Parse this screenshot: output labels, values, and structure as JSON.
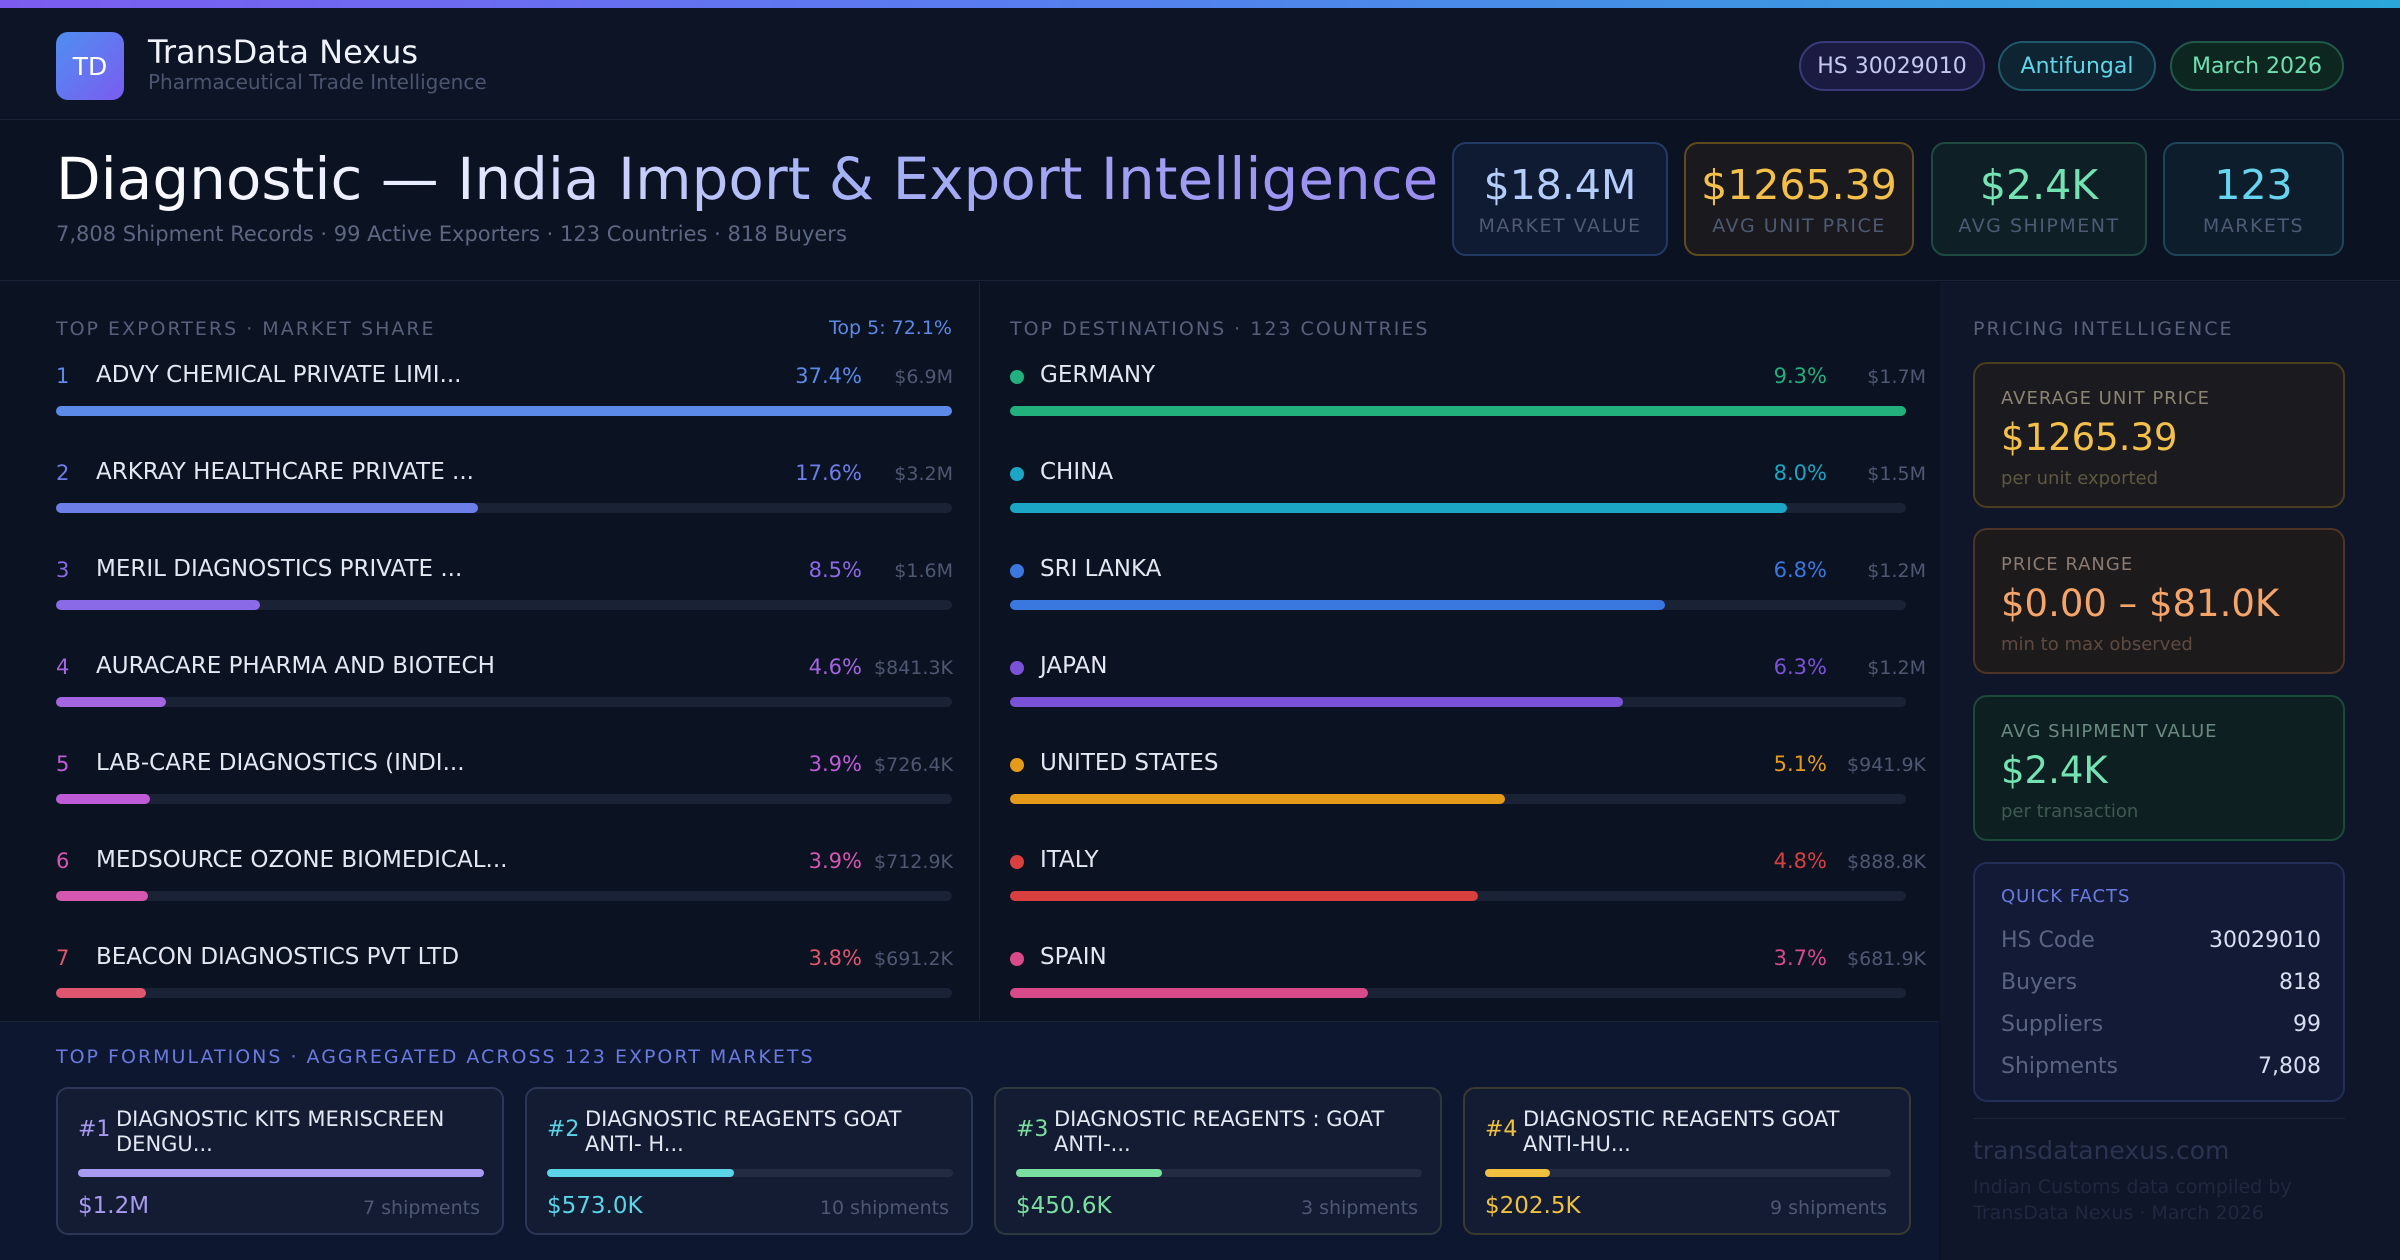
{
  "brand": {
    "logo_text": "TD",
    "title": "TransData Nexus",
    "subtitle": "Pharmaceutical Trade Intelligence"
  },
  "tags": {
    "hs": "HS 30029010",
    "category": "Antifungal",
    "period": "March 2026"
  },
  "hero": {
    "title": "Diagnostic — India Import & Export Intelligence",
    "subtitle": "7,808 Shipment Records · 99 Active Exporters · 123 Countries · 818 Buyers"
  },
  "kpis": [
    {
      "value": "$18.4M",
      "label": "MARKET VALUE"
    },
    {
      "value": "$1265.39",
      "label": "AVG UNIT PRICE"
    },
    {
      "value": "$2.4K",
      "label": "AVG SHIPMENT"
    },
    {
      "value": "123",
      "label": "MARKETS"
    }
  ],
  "exporters": {
    "title": "TOP EXPORTERS · MARKET SHARE",
    "summary": "Top 5: 72.1%",
    "items": [
      {
        "rank": "1",
        "name": "ADVY CHEMICAL PRIVATE LIMI...",
        "pct": "37.4%",
        "value": "$6.9M",
        "share": 1.0,
        "color": "#5b8ae8"
      },
      {
        "rank": "2",
        "name": "ARKRAY HEALTHCARE PRIVATE ...",
        "pct": "17.6%",
        "value": "$3.2M",
        "share": 0.471,
        "color": "#6d7ee8"
      },
      {
        "rank": "3",
        "name": "MERIL DIAGNOSTICS PRIVATE ...",
        "pct": "8.5%",
        "value": "$1.6M",
        "share": 0.228,
        "color": "#8a6ae6"
      },
      {
        "rank": "4",
        "name": "AURACARE PHARMA AND BIOTECH",
        "pct": "4.6%",
        "value": "$841.3K",
        "share": 0.123,
        "color": "#a465e0"
      },
      {
        "rank": "5",
        "name": "LAB-CARE DIAGNOSTICS (INDI...",
        "pct": "3.9%",
        "value": "$726.4K",
        "share": 0.105,
        "color": "#c05bd8"
      },
      {
        "rank": "6",
        "name": "MEDSOURCE OZONE BIOMEDICAL...",
        "pct": "3.9%",
        "value": "$712.9K",
        "share": 0.103,
        "color": "#d657b0"
      },
      {
        "rank": "7",
        "name": "BEACON DIAGNOSTICS PVT LTD",
        "pct": "3.8%",
        "value": "$691.2K",
        "share": 0.1,
        "color": "#e0566e"
      }
    ]
  },
  "destinations": {
    "title": "TOP DESTINATIONS · 123 COUNTRIES",
    "items": [
      {
        "name": "GERMANY",
        "pct": "9.3%",
        "value": "$1.7M",
        "share": 1.0,
        "color": "#22b07c"
      },
      {
        "name": "CHINA",
        "pct": "8.0%",
        "value": "$1.5M",
        "share": 0.867,
        "color": "#1aa6c4"
      },
      {
        "name": "SRI LANKA",
        "pct": "6.8%",
        "value": "$1.2M",
        "share": 0.731,
        "color": "#3a78e0"
      },
      {
        "name": "JAPAN",
        "pct": "6.3%",
        "value": "$1.2M",
        "share": 0.684,
        "color": "#7a52d8"
      },
      {
        "name": "UNITED STATES",
        "pct": "5.1%",
        "value": "$941.9K",
        "share": 0.552,
        "color": "#e59a1a"
      },
      {
        "name": "ITALY",
        "pct": "4.8%",
        "value": "$888.8K",
        "share": 0.522,
        "color": "#d84040"
      },
      {
        "name": "SPAIN",
        "pct": "3.7%",
        "value": "$681.9K",
        "share": 0.4,
        "color": "#d84a8a"
      }
    ]
  },
  "formulations": {
    "title": "TOP FORMULATIONS · AGGREGATED ACROSS 123 EXPORT MARKETS",
    "items": [
      {
        "rank": "#1",
        "name": "DIAGNOSTIC KITS MERISCREEN DENGU...",
        "value": "$1.2M",
        "shipments": "7 shipments",
        "share": 1.0,
        "color": "#a79af0",
        "border": "#2c3656"
      },
      {
        "rank": "#2",
        "name": "DIAGNOSTIC REAGENTS GOAT ANTI- H...",
        "value": "$573.0K",
        "shipments": "10 shipments",
        "share": 0.46,
        "color": "#5ad4e6",
        "border": "#2c3656"
      },
      {
        "rank": "#3",
        "name": "DIAGNOSTIC REAGENTS : GOAT ANTI-...",
        "value": "$450.6K",
        "shipments": "3 shipments",
        "share": 0.36,
        "color": "#7ae0a0",
        "border": "#2c3a40"
      },
      {
        "rank": "#4",
        "name": "DIAGNOSTIC REAGENTS GOAT ANTI-HU...",
        "value": "$202.5K",
        "shipments": "9 shipments",
        "share": 0.16,
        "color": "#f0c040",
        "border": "#3a3a30"
      }
    ]
  },
  "pricing": {
    "title": "PRICING INTELLIGENCE",
    "avg_unit": {
      "label": "AVERAGE UNIT PRICE",
      "value": "$1265.39",
      "note": "per unit exported"
    },
    "range": {
      "label": "PRICE RANGE",
      "value": "$0.00 – $81.0K",
      "note": "min to max observed"
    },
    "avg_ship": {
      "label": "AVG SHIPMENT VALUE",
      "value": "$2.4K",
      "note": "per transaction"
    },
    "quick_facts": {
      "label": "QUICK FACTS",
      "rows": [
        {
          "k": "HS Code",
          "v": "30029010"
        },
        {
          "k": "Buyers",
          "v": "818"
        },
        {
          "k": "Suppliers",
          "v": "99"
        },
        {
          "k": "Shipments",
          "v": "7,808"
        }
      ]
    },
    "footer_site": "transdatanexus.com",
    "footer_note": "Indian Customs data compiled by TransData Nexus · March 2026"
  }
}
